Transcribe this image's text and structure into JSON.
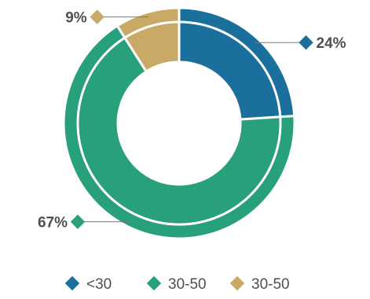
{
  "chart_data": {
    "type": "pie",
    "style": "donut",
    "title": "",
    "categories": [
      "<30",
      "30-50",
      "30-50"
    ],
    "values": [
      24,
      67,
      9
    ],
    "value_labels": [
      "24%",
      "67%",
      "9%"
    ],
    "colors": [
      "#1b6f9c",
      "#27a07b",
      "#c9a966"
    ],
    "legend": {
      "placement": "bottom",
      "entries": [
        "<30",
        "30-50",
        "30-50"
      ]
    },
    "grid": false
  }
}
